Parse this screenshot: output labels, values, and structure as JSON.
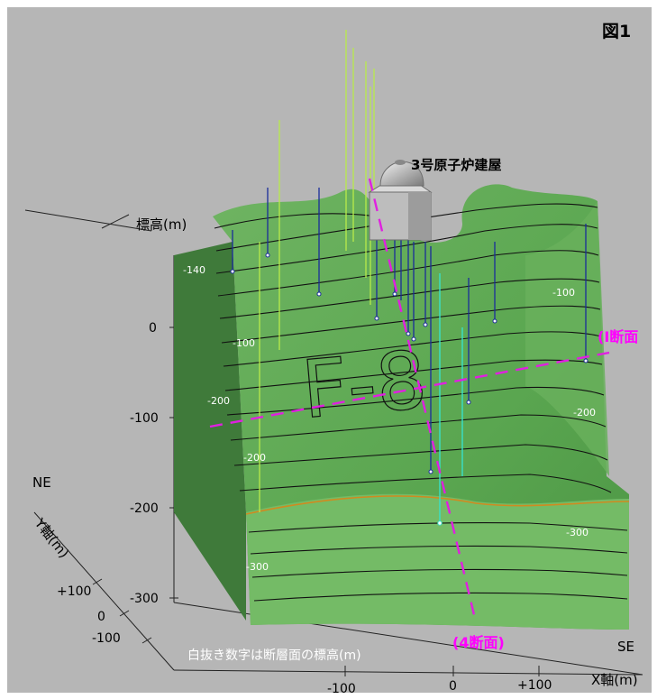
{
  "figure_label": "図1",
  "building_label": "3号原子炉建屋",
  "fault_label": "F-8",
  "section_h_label": "(Ⅰ断面",
  "section_v_label": "(4断面)",
  "z_axis": {
    "label": "標高(m)",
    "ticks": [
      "0",
      "-100",
      "-200",
      "-300"
    ]
  },
  "y_axis": {
    "label": "Y軸(m)",
    "dir_label": "NE",
    "ticks": [
      "+100",
      "0",
      "-100"
    ]
  },
  "x_axis": {
    "label": "X軸(m)",
    "dir_label": "SE",
    "ticks": [
      "-100",
      "0",
      "+100"
    ]
  },
  "contour_labels": [
    "-140",
    "-100",
    "-200",
    "-200",
    "-300",
    "-100",
    "-200",
    "-300"
  ],
  "note": "白抜き数字は断層面の標高(m)",
  "colors": {
    "background": "#b6b6b6",
    "fault_surface": "#5fa752",
    "fault_surface_light": "#7cc06b",
    "fault_surface_dark": "#3f7a3a",
    "section_line": "#e020e0",
    "section_text": "#ff00ff",
    "borehole": "#1a2c9a",
    "borehole_light": "#b8ea4a",
    "borehole_cyan": "#38e0c8"
  }
}
